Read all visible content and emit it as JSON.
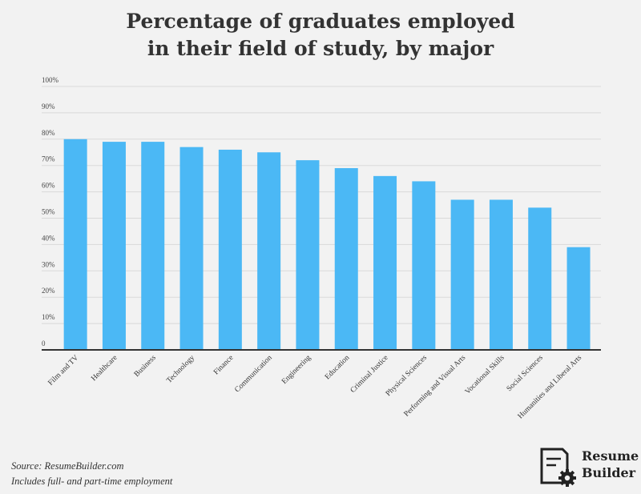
{
  "title": {
    "line1": "Percentage of graduates employed",
    "line2": "in their field of study, by major"
  },
  "footer": {
    "source": "Source: ResumeBuilder.com",
    "note": "Includes full- and part-time employment"
  },
  "logo": {
    "line1": "Resume",
    "line2": "Builder",
    "icon": "document-gear-icon"
  },
  "colors": {
    "bar": "#4bb8f5",
    "grid": "#d9d9d9",
    "axis": "#333333"
  },
  "chart_data": {
    "type": "bar",
    "title": "Percentage of graduates employed in their field of study, by major",
    "xlabel": "",
    "ylabel": "",
    "ylim": [
      0,
      100
    ],
    "yticks": [
      {
        "value": 0,
        "label": "0"
      },
      {
        "value": 10,
        "label": "10%"
      },
      {
        "value": 20,
        "label": "20%"
      },
      {
        "value": 30,
        "label": "30%"
      },
      {
        "value": 40,
        "label": "40%"
      },
      {
        "value": 50,
        "label": "50%"
      },
      {
        "value": 60,
        "label": "60%"
      },
      {
        "value": 70,
        "label": "70%"
      },
      {
        "value": 80,
        "label": "80%"
      },
      {
        "value": 90,
        "label": "90%"
      },
      {
        "value": 100,
        "label": "100%"
      }
    ],
    "grid": true,
    "categories": [
      "Film and TV",
      "Healthcare",
      "Business",
      "Technology",
      "Finance",
      "Communication",
      "Engineering",
      "Education",
      "Criminal Justice",
      "Physical Sciences",
      "Performing and Visual Arts",
      "Vocational Skills",
      "Social Sciences",
      "Humanities and Liberal Arts"
    ],
    "values": [
      80,
      79,
      79,
      77,
      76,
      75,
      72,
      69,
      66,
      64,
      57,
      57,
      54,
      39
    ]
  }
}
